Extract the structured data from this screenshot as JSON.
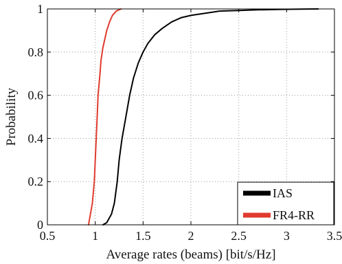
{
  "chart_data": {
    "type": "line",
    "title": "",
    "xlabel": "Average rates (beams) [bit/s/Hz]",
    "ylabel": "Probability",
    "xlim": [
      0.5,
      3.5
    ],
    "ylim": [
      0,
      1
    ],
    "xticks": [
      "0.5",
      "1",
      "1.5",
      "2",
      "2.5",
      "3",
      "3.5"
    ],
    "yticks": [
      "0",
      "0.2",
      "0.4",
      "0.6",
      "0.8",
      "1"
    ],
    "grid": true,
    "grid_style": "dotted",
    "legend_position": "bottom-right",
    "series": [
      {
        "name": "IAS",
        "color": "#000000",
        "x": [
          1.08,
          1.12,
          1.17,
          1.2,
          1.23,
          1.25,
          1.28,
          1.32,
          1.36,
          1.4,
          1.45,
          1.5,
          1.55,
          1.62,
          1.7,
          1.8,
          1.9,
          2.0,
          2.15,
          2.3,
          2.5,
          2.7,
          2.95,
          3.15,
          3.33
        ],
        "y": [
          0.0,
          0.01,
          0.05,
          0.1,
          0.2,
          0.3,
          0.4,
          0.5,
          0.6,
          0.68,
          0.75,
          0.8,
          0.84,
          0.88,
          0.91,
          0.94,
          0.96,
          0.97,
          0.98,
          0.99,
          0.993,
          0.996,
          0.998,
          0.999,
          1.0
        ]
      },
      {
        "name": "FR4-RR",
        "color": "#e03a2e",
        "x": [
          0.93,
          0.95,
          0.97,
          0.99,
          1.0,
          1.01,
          1.02,
          1.03,
          1.04,
          1.05,
          1.06,
          1.08,
          1.1,
          1.12,
          1.15,
          1.18,
          1.22,
          1.27
        ],
        "y": [
          0.0,
          0.05,
          0.1,
          0.2,
          0.3,
          0.4,
          0.5,
          0.6,
          0.65,
          0.7,
          0.76,
          0.82,
          0.86,
          0.9,
          0.94,
          0.97,
          0.99,
          1.0
        ]
      }
    ]
  }
}
